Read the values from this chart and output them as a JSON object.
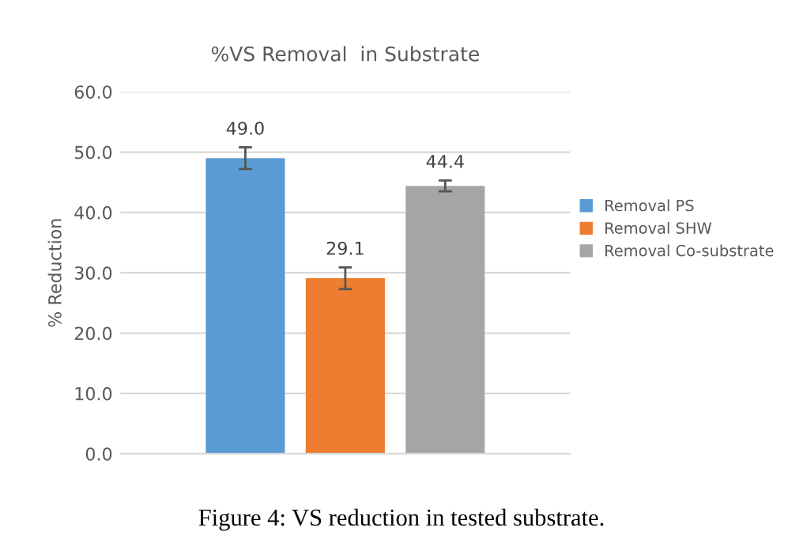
{
  "chart_data": {
    "type": "bar",
    "title": "%VS Removal  in Substrate",
    "ylabel": "% Reduction",
    "categories": [
      null
    ],
    "series": [
      {
        "name": "Removal PS",
        "color": "#5b9bd5",
        "values": [
          49.0
        ],
        "value_labels": [
          "49.0"
        ],
        "errors": [
          1.8
        ]
      },
      {
        "name": "Removal SHW",
        "color": "#ed7d31",
        "values": [
          29.1
        ],
        "value_labels": [
          "29.1"
        ],
        "errors": [
          1.8
        ]
      },
      {
        "name": "Removal Co-substrate",
        "color": "#a5a5a5",
        "values": [
          44.4
        ],
        "value_labels": [
          "44.4"
        ],
        "errors": [
          0.9
        ]
      }
    ],
    "ylim": [
      0,
      60
    ],
    "yticks": [
      {
        "value": 0,
        "label": "0.0"
      },
      {
        "value": 10,
        "label": "10.0"
      },
      {
        "value": 20,
        "label": "20.0"
      },
      {
        "value": 30,
        "label": "30.0"
      },
      {
        "value": 40,
        "label": "40.0"
      },
      {
        "value": 50,
        "label": "50.0"
      },
      {
        "value": 60,
        "label": "60.0"
      }
    ],
    "grid": "y",
    "legend": "right",
    "annotations": [
      "Figure 4: VS reduction in tested substrate."
    ]
  }
}
